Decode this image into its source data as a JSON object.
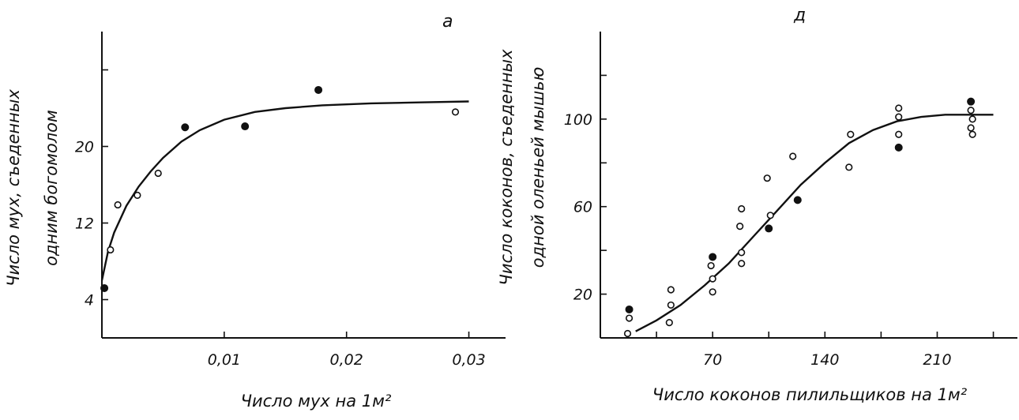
{
  "chart_data": [
    {
      "type": "scatter",
      "panel_label": "a",
      "xlabel": "Число мух на 1м²",
      "ylabel_line1": "Число мух, съеденных",
      "ylabel_line2": "одним богомолом",
      "x_ticks": [
        0.01,
        0.02,
        0.03
      ],
      "x_tick_labels": [
        "0,01",
        "0,02",
        "0,03"
      ],
      "y_ticks": [
        4,
        12,
        20,
        28
      ],
      "y_tick_labels": [
        "4",
        "12",
        "20",
        ""
      ],
      "xlim": [
        0,
        0.033
      ],
      "ylim": [
        0,
        32
      ],
      "points": [
        {
          "x": 0.0002,
          "y": 5.2,
          "filled": true
        },
        {
          "x": 0.0007,
          "y": 9.2,
          "filled": false
        },
        {
          "x": 0.0013,
          "y": 13.9,
          "filled": false
        },
        {
          "x": 0.0029,
          "y": 14.9,
          "filled": false
        },
        {
          "x": 0.0046,
          "y": 17.2,
          "filled": false
        },
        {
          "x": 0.0068,
          "y": 22.0,
          "filled": true
        },
        {
          "x": 0.0117,
          "y": 22.1,
          "filled": true
        },
        {
          "x": 0.0177,
          "y": 25.9,
          "filled": true
        },
        {
          "x": 0.0289,
          "y": 23.6,
          "filled": false
        }
      ],
      "curve": [
        [
          0,
          6.0
        ],
        [
          0.0005,
          9.0
        ],
        [
          0.001,
          11.0
        ],
        [
          0.002,
          13.8
        ],
        [
          0.003,
          15.8
        ],
        [
          0.004,
          17.4
        ],
        [
          0.005,
          18.8
        ],
        [
          0.0065,
          20.5
        ],
        [
          0.008,
          21.7
        ],
        [
          0.01,
          22.8
        ],
        [
          0.0125,
          23.6
        ],
        [
          0.015,
          24.0
        ],
        [
          0.018,
          24.3
        ],
        [
          0.022,
          24.5
        ],
        [
          0.026,
          24.6
        ],
        [
          0.03,
          24.7
        ]
      ]
    },
    {
      "type": "scatter",
      "panel_label": "д",
      "xlabel": "Число коконов пилильщиков на 1м²",
      "ylabel_line1": "Число коконов, съеденных",
      "ylabel_line2": "одной оленьей мышью",
      "x_ticks": [
        35,
        70,
        105,
        140,
        175,
        210,
        245
      ],
      "x_tick_labels": [
        "",
        "70",
        "",
        "140",
        "",
        "210",
        ""
      ],
      "y_ticks": [
        20,
        40,
        60,
        80,
        100,
        120
      ],
      "y_tick_labels": [
        "20",
        "",
        "60",
        "",
        "100",
        ""
      ],
      "xlim": [
        0,
        260
      ],
      "ylim": [
        0,
        140
      ],
      "points": [
        {
          "x": 18,
          "y": 13,
          "filled": true
        },
        {
          "x": 18,
          "y": 9,
          "filled": false
        },
        {
          "x": 17,
          "y": 2,
          "filled": false
        },
        {
          "x": 44,
          "y": 22,
          "filled": false
        },
        {
          "x": 44,
          "y": 15,
          "filled": false
        },
        {
          "x": 43,
          "y": 7,
          "filled": false
        },
        {
          "x": 70,
          "y": 37,
          "filled": true
        },
        {
          "x": 69,
          "y": 33,
          "filled": false
        },
        {
          "x": 70,
          "y": 27,
          "filled": false
        },
        {
          "x": 70,
          "y": 21,
          "filled": false
        },
        {
          "x": 88,
          "y": 59,
          "filled": false
        },
        {
          "x": 87,
          "y": 51,
          "filled": false
        },
        {
          "x": 88,
          "y": 39,
          "filled": false
        },
        {
          "x": 88,
          "y": 34,
          "filled": false
        },
        {
          "x": 104,
          "y": 73,
          "filled": false
        },
        {
          "x": 106,
          "y": 56,
          "filled": false
        },
        {
          "x": 105,
          "y": 50,
          "filled": true
        },
        {
          "x": 120,
          "y": 83,
          "filled": false
        },
        {
          "x": 123,
          "y": 63,
          "filled": true
        },
        {
          "x": 155,
          "y": 78,
          "filled": false
        },
        {
          "x": 156,
          "y": 93,
          "filled": false
        },
        {
          "x": 186,
          "y": 105,
          "filled": false
        },
        {
          "x": 186,
          "y": 101,
          "filled": false
        },
        {
          "x": 186,
          "y": 93,
          "filled": false
        },
        {
          "x": 186,
          "y": 87,
          "filled": true
        },
        {
          "x": 231,
          "y": 108,
          "filled": true
        },
        {
          "x": 231,
          "y": 104,
          "filled": false
        },
        {
          "x": 232,
          "y": 100,
          "filled": false
        },
        {
          "x": 231,
          "y": 96,
          "filled": false
        },
        {
          "x": 232,
          "y": 93,
          "filled": false
        }
      ],
      "curve": [
        [
          22,
          3
        ],
        [
          35,
          8
        ],
        [
          50,
          15
        ],
        [
          65,
          24
        ],
        [
          80,
          34
        ],
        [
          95,
          46
        ],
        [
          110,
          58
        ],
        [
          125,
          70
        ],
        [
          140,
          80
        ],
        [
          155,
          89
        ],
        [
          170,
          95
        ],
        [
          185,
          99
        ],
        [
          200,
          101
        ],
        [
          215,
          102
        ],
        [
          230,
          102
        ],
        [
          245,
          102
        ]
      ]
    }
  ]
}
